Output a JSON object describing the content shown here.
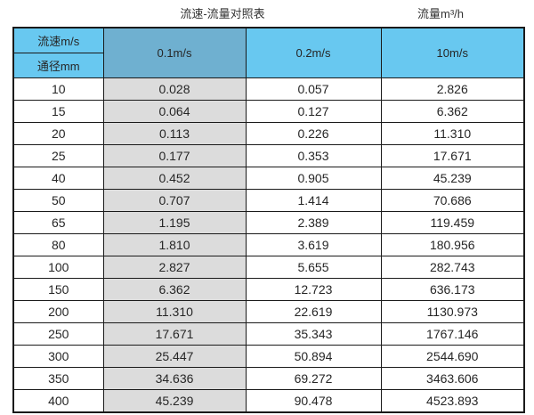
{
  "page": {
    "title": "流速-流量对照表",
    "unit_label": "流量m³/h"
  },
  "colors": {
    "header_light_blue": "#68c8f0",
    "header_steel_blue": "#6fb0d0",
    "shaded_column_gray": "#dcdcdc",
    "border": "#1a1a1a",
    "text": "#262626"
  },
  "chart_data": {
    "type": "table",
    "title": "流速-流量对照表",
    "unit": "流量m³/h",
    "corner_labels": {
      "velocity_label": "流速m/s",
      "diameter_label": "通径mm"
    },
    "velocity_columns": [
      "0.1m/s",
      "0.2m/s",
      "10m/s"
    ],
    "rows": [
      {
        "dn": "10",
        "v01": "0.028",
        "v02": "0.057",
        "v10": "2.826"
      },
      {
        "dn": "15",
        "v01": "0.064",
        "v02": "0.127",
        "v10": "6.362"
      },
      {
        "dn": "20",
        "v01": "0.113",
        "v02": "0.226",
        "v10": "11.310"
      },
      {
        "dn": "25",
        "v01": "0.177",
        "v02": "0.353",
        "v10": "17.671"
      },
      {
        "dn": "40",
        "v01": "0.452",
        "v02": "0.905",
        "v10": "45.239"
      },
      {
        "dn": "50",
        "v01": "0.707",
        "v02": "1.414",
        "v10": "70.686"
      },
      {
        "dn": "65",
        "v01": "1.195",
        "v02": "2.389",
        "v10": "119.459"
      },
      {
        "dn": "80",
        "v01": "1.810",
        "v02": "3.619",
        "v10": "180.956"
      },
      {
        "dn": "100",
        "v01": "2.827",
        "v02": "5.655",
        "v10": "282.743"
      },
      {
        "dn": "150",
        "v01": "6.362",
        "v02": "12.723",
        "v10": "636.173"
      },
      {
        "dn": "200",
        "v01": "11.310",
        "v02": "22.619",
        "v10": "1130.973"
      },
      {
        "dn": "250",
        "v01": "17.671",
        "v02": "35.343",
        "v10": "1767.146"
      },
      {
        "dn": "300",
        "v01": "25.447",
        "v02": "50.894",
        "v10": "2544.690"
      },
      {
        "dn": "350",
        "v01": "34.636",
        "v02": "69.272",
        "v10": "3463.606"
      },
      {
        "dn": "400",
        "v01": "45.239",
        "v02": "90.478",
        "v10": "4523.893"
      }
    ]
  }
}
